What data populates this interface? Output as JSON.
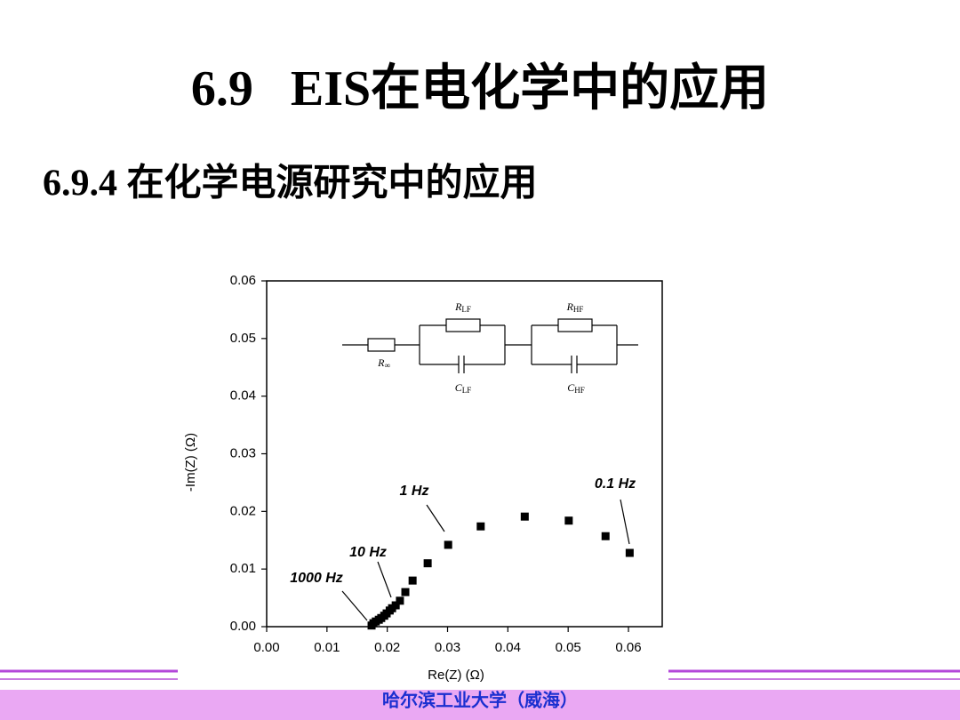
{
  "title": "6.9   EIS在电化学中的应用",
  "subtitle": "6.9.4 在化学电源研究中的应用",
  "footer": "哈尔滨工业大学（威海）",
  "chart_data": {
    "type": "scatter",
    "x_label": "Re(Z) (Ω)",
    "y_label": "-Im(Z) (Ω)",
    "annotations": [
      "1000 Hz",
      "10 Hz",
      "1 Hz",
      "0.1 Hz"
    ],
    "circuit_labels": [
      {
        "main": "R",
        "sub": "LF"
      },
      {
        "main": "R",
        "sub": "HF"
      },
      {
        "main": "R",
        "sub": "∞"
      },
      {
        "main": "C",
        "sub": "LF"
      },
      {
        "main": "C",
        "sub": "HF"
      }
    ],
    "color": "#000000",
    "x": [
      0.0174,
      0.0177,
      0.0181,
      0.0186,
      0.019,
      0.0195,
      0.0199,
      0.0204,
      0.0208,
      0.0214,
      0.0221,
      0.023,
      0.0242,
      0.0267,
      0.0301,
      0.0355,
      0.0428,
      0.0501,
      0.0562,
      0.0602
    ],
    "values": [
      0.0002,
      0.0006,
      0.0009,
      0.0012,
      0.0015,
      0.0019,
      0.0023,
      0.0028,
      0.0032,
      0.0037,
      0.0045,
      0.006,
      0.008,
      0.011,
      0.0142,
      0.0174,
      0.0191,
      0.0184,
      0.0157,
      0.0128
    ],
    "xlim": [
      0,
      0.0656
    ],
    "ylim": [
      0,
      0.06
    ],
    "xticks": [
      {
        "value": 0,
        "label": "0.00"
      },
      {
        "value": 0.01,
        "label": "0.01"
      },
      {
        "value": 0.02,
        "label": "0.02"
      },
      {
        "value": 0.03,
        "label": "0.03"
      },
      {
        "value": 0.04,
        "label": "0.04"
      },
      {
        "value": 0.05,
        "label": "0.05"
      },
      {
        "value": 0.06,
        "label": "0.06"
      }
    ],
    "yticks": [
      {
        "value": 0,
        "label": "0.00"
      },
      {
        "value": 0.01,
        "label": "0.01"
      },
      {
        "value": 0.02,
        "label": "0.02"
      },
      {
        "value": 0.03,
        "label": "0.03"
      },
      {
        "value": 0.04,
        "label": "0.04"
      },
      {
        "value": 0.05,
        "label": "0.05"
      },
      {
        "value": 0.06,
        "label": "0.06"
      }
    ]
  }
}
